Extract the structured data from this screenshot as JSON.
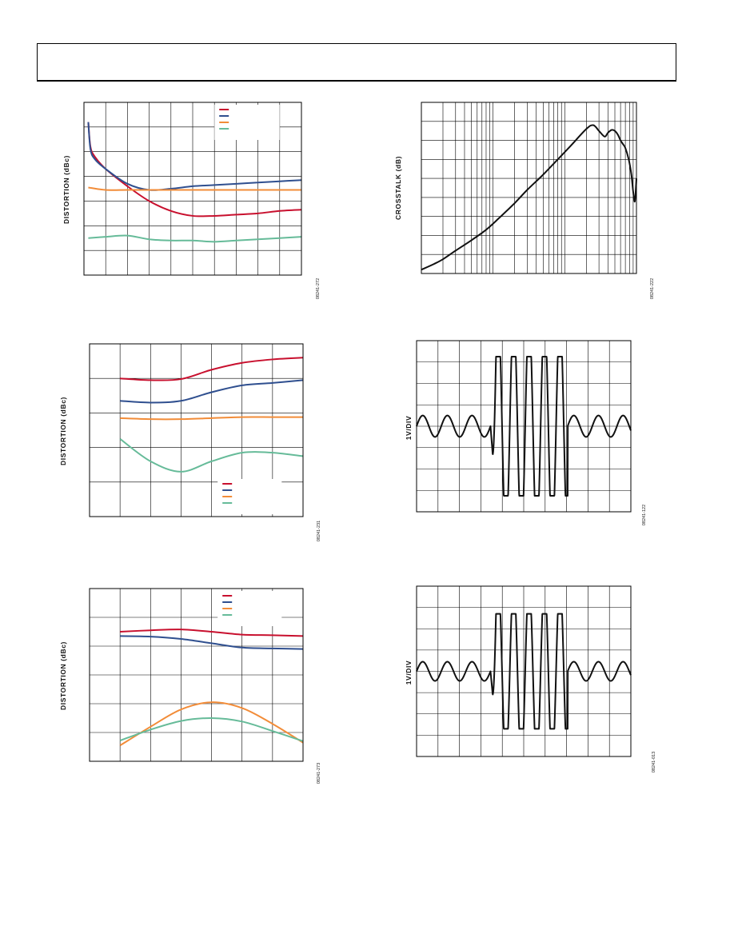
{
  "page": {
    "header_frame": ""
  },
  "chart_data": [
    {
      "id": "distortion-1",
      "type": "line",
      "ylabel": "DISTORTION (dBc)",
      "figure_number": "08241-272",
      "grid": {
        "cols": 10,
        "rows": 7
      },
      "xlim": [
        0,
        10
      ],
      "ylim": [
        0,
        7
      ],
      "legend": {
        "position": "top-right",
        "entries": 4
      },
      "series": [
        {
          "color": "#c8102e",
          "x": [
            0.2,
            0.3,
            0.5,
            1.0,
            2.0,
            3.0,
            4.0,
            5.0,
            6.0,
            7.0,
            8.0,
            9.0,
            10.0
          ],
          "y": [
            6.2,
            5.2,
            4.8,
            4.3,
            3.6,
            3.0,
            2.6,
            2.4,
            2.4,
            2.45,
            2.5,
            2.6,
            2.65
          ]
        },
        {
          "color": "#2f4f8f",
          "x": [
            0.2,
            0.3,
            0.5,
            1.0,
            2.0,
            3.0,
            4.0,
            5.0,
            6.0,
            7.0,
            8.0,
            9.0,
            10.0
          ],
          "y": [
            6.2,
            5.1,
            4.7,
            4.3,
            3.7,
            3.45,
            3.5,
            3.6,
            3.65,
            3.7,
            3.75,
            3.8,
            3.85
          ]
        },
        {
          "color": "#f28c38",
          "x": [
            0.2,
            1.0,
            2.0,
            3.0,
            4.0,
            5.0,
            6.0,
            7.0,
            8.0,
            9.0,
            10.0
          ],
          "y": [
            3.55,
            3.45,
            3.45,
            3.45,
            3.45,
            3.45,
            3.45,
            3.45,
            3.45,
            3.45,
            3.45
          ]
        },
        {
          "color": "#66bb99",
          "x": [
            0.2,
            1.0,
            2.0,
            3.0,
            4.0,
            5.0,
            6.0,
            7.0,
            8.0,
            9.0,
            10.0
          ],
          "y": [
            1.5,
            1.55,
            1.6,
            1.45,
            1.4,
            1.4,
            1.35,
            1.4,
            1.45,
            1.5,
            1.55
          ]
        }
      ]
    },
    {
      "id": "distortion-2",
      "type": "line",
      "ylabel": "DISTORTION (dBc)",
      "figure_number": "08241-231",
      "grid": {
        "cols": 7,
        "rows": 5
      },
      "xlim": [
        0,
        7
      ],
      "ylim": [
        0,
        5
      ],
      "legend": {
        "position": "bottom-right",
        "entries": 4
      },
      "series": [
        {
          "color": "#c8102e",
          "x": [
            1,
            2,
            3,
            4,
            5,
            6,
            7
          ],
          "y": [
            4.0,
            3.95,
            3.98,
            4.25,
            4.45,
            4.55,
            4.6
          ]
        },
        {
          "color": "#2f4f8f",
          "x": [
            1,
            2,
            3,
            4,
            5,
            6,
            7
          ],
          "y": [
            3.35,
            3.3,
            3.35,
            3.6,
            3.8,
            3.87,
            3.95
          ]
        },
        {
          "color": "#f28c38",
          "x": [
            1,
            2,
            3,
            4,
            5,
            6,
            7
          ],
          "y": [
            2.85,
            2.82,
            2.82,
            2.85,
            2.88,
            2.88,
            2.88
          ]
        },
        {
          "color": "#66bb99",
          "x": [
            1,
            2,
            3,
            4,
            5,
            6,
            7
          ],
          "y": [
            2.25,
            1.6,
            1.3,
            1.6,
            1.85,
            1.85,
            1.75
          ]
        }
      ]
    },
    {
      "id": "distortion-3",
      "type": "line",
      "ylabel": "DISTORTION (dBc)",
      "figure_number": "08241-273",
      "grid": {
        "cols": 7,
        "rows": 6
      },
      "xlim": [
        0,
        7
      ],
      "ylim": [
        0,
        6
      ],
      "legend": {
        "position": "top-right",
        "entries": 4
      },
      "series": [
        {
          "color": "#c8102e",
          "x": [
            1,
            2,
            3,
            4,
            5,
            6,
            7
          ],
          "y": [
            4.5,
            4.55,
            4.58,
            4.5,
            4.4,
            4.38,
            4.35
          ]
        },
        {
          "color": "#2f4f8f",
          "x": [
            1,
            2,
            3,
            4,
            5,
            6,
            7
          ],
          "y": [
            4.35,
            4.33,
            4.25,
            4.1,
            3.95,
            3.92,
            3.9
          ]
        },
        {
          "color": "#f28c38",
          "x": [
            1,
            2,
            3,
            4,
            5,
            6,
            7
          ],
          "y": [
            0.55,
            1.2,
            1.8,
            2.05,
            1.85,
            1.3,
            0.65
          ]
        },
        {
          "color": "#66bb99",
          "x": [
            1,
            2,
            3,
            4,
            5,
            6,
            7
          ],
          "y": [
            0.72,
            1.1,
            1.4,
            1.5,
            1.38,
            1.05,
            0.7
          ]
        }
      ]
    },
    {
      "id": "crosstalk",
      "type": "line",
      "ylabel": "CROSSTALK (dB)",
      "figure_number": "08241-222",
      "xscale": "log",
      "grid": {
        "decades": 3,
        "rows": 9
      },
      "xlim": [
        1,
        1000
      ],
      "ylim": [
        0,
        9
      ],
      "series": [
        {
          "color": "#111111",
          "x": [
            1,
            1.5,
            2,
            3,
            5,
            8,
            12,
            20,
            30,
            50,
            80,
            120,
            200,
            250,
            300,
            360,
            400,
            450,
            500,
            550,
            600,
            650,
            700,
            780,
            850,
            900,
            950,
            1000
          ],
          "y": [
            0.2,
            0.5,
            0.75,
            1.2,
            1.75,
            2.3,
            2.9,
            3.7,
            4.4,
            5.2,
            6.0,
            6.7,
            7.6,
            7.8,
            7.5,
            7.2,
            7.4,
            7.55,
            7.5,
            7.3,
            7.0,
            6.8,
            6.6,
            6.0,
            5.2,
            4.3,
            3.8,
            5.0
          ]
        }
      ]
    },
    {
      "id": "pulse-1",
      "type": "line",
      "ylabel": "1V/DIV",
      "figure_number": "08241-122",
      "grid": {
        "cols": 10,
        "rows": 8
      },
      "xlim": [
        0,
        10
      ],
      "ylim": [
        -4,
        4
      ],
      "burst": {
        "start_div": 3.45,
        "end_div": 7.05,
        "peaks": 5,
        "amplitude_div": 3.25,
        "idle_cycles_each_side": 3,
        "idle_amplitude_div": 0.5
      }
    },
    {
      "id": "pulse-2",
      "type": "line",
      "ylabel": "1V/DIV",
      "figure_number": "08241-013",
      "grid": {
        "cols": 10,
        "rows": 8
      },
      "xlim": [
        0,
        10
      ],
      "ylim": [
        -4,
        4
      ],
      "burst": {
        "start_div": 3.45,
        "end_div": 7.05,
        "peaks": 5,
        "amplitude_div": 2.7,
        "idle_cycles_each_side": 3,
        "idle_amplitude_div": 0.45
      }
    }
  ]
}
